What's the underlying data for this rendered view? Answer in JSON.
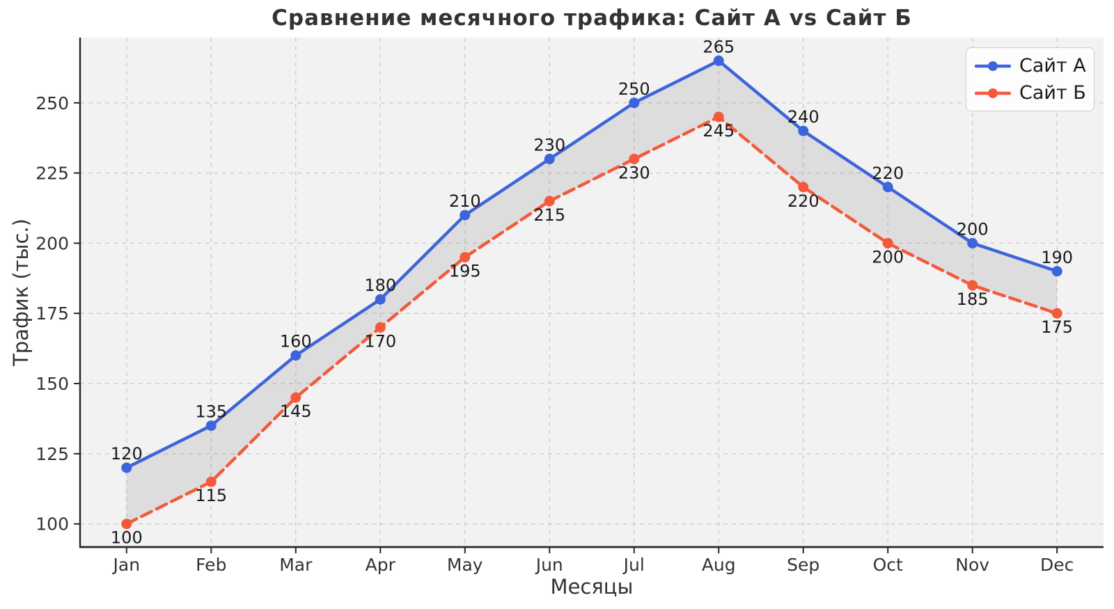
{
  "figure": {
    "title": "Сравнение месячного трафика: Сайт А vs Сайт Б"
  },
  "chart_data": {
    "type": "line",
    "title": "Сравнение месячного трафика: Сайт А vs Сайт Б",
    "xlabel": "Месяцы",
    "ylabel": "Трафик (тыс.)",
    "categories": [
      "Jan",
      "Feb",
      "Mar",
      "Apr",
      "May",
      "Jun",
      "Jul",
      "Aug",
      "Sep",
      "Oct",
      "Nov",
      "Dec"
    ],
    "series": [
      {
        "name": "Сайт А",
        "values": [
          120,
          135,
          160,
          180,
          210,
          230,
          250,
          265,
          240,
          220,
          200,
          190
        ],
        "color": "#3E64DB",
        "line_style": "solid",
        "marker": "circle",
        "label_position": "above"
      },
      {
        "name": "Сайт Б",
        "values": [
          100,
          115,
          145,
          170,
          195,
          215,
          230,
          245,
          220,
          200,
          185,
          175
        ],
        "color": "#F5593C",
        "line_style": "dashed",
        "marker": "circle",
        "label_position": "below"
      }
    ],
    "yticks": [
      100,
      125,
      150,
      175,
      200,
      225,
      250
    ],
    "ylim": [
      91.75,
      273.25
    ],
    "grid": true,
    "grid_style": "dashed",
    "data_labels": true,
    "fill_between_series": true,
    "legend_position": "top-right",
    "colors": {
      "plot_background": "#F2F2F2",
      "grid": "#CCCCCC",
      "fill_between": "rgba(127,127,127,0.18)",
      "spine": "#262626",
      "tick_text": "#333333",
      "annotation_text": "#1A1A1A"
    }
  }
}
